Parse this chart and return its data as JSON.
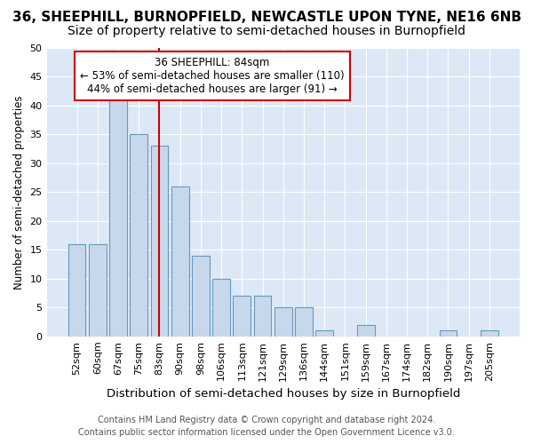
{
  "title1": "36, SHEEPHILL, BURNOPFIELD, NEWCASTLE UPON TYNE, NE16 6NB",
  "title2": "Size of property relative to semi-detached houses in Burnopfield",
  "xlabel": "Distribution of semi-detached houses by size in Burnopfield",
  "ylabel": "Number of semi-detached properties",
  "footer1": "Contains HM Land Registry data © Crown copyright and database right 2024.",
  "footer2": "Contains public sector information licensed under the Open Government Licence v3.0.",
  "categories": [
    "52sqm",
    "60sqm",
    "67sqm",
    "75sqm",
    "83sqm",
    "90sqm",
    "98sqm",
    "106sqm",
    "113sqm",
    "121sqm",
    "129sqm",
    "136sqm",
    "144sqm",
    "151sqm",
    "159sqm",
    "167sqm",
    "174sqm",
    "182sqm",
    "190sqm",
    "197sqm",
    "205sqm"
  ],
  "values": [
    16,
    16,
    41,
    35,
    33,
    26,
    14,
    10,
    7,
    7,
    5,
    5,
    1,
    0,
    2,
    0,
    0,
    0,
    1,
    0,
    1
  ],
  "bar_color": "#c8d8ec",
  "bar_edge_color": "#6699bb",
  "highlight_line_color": "#cc0000",
  "highlight_bar_index": 4,
  "annotation_title": "36 SHEEPHILL: 84sqm",
  "annotation_line1": "← 53% of semi-detached houses are smaller (110)",
  "annotation_line2": "44% of semi-detached houses are larger (91) →",
  "annotation_box_facecolor": "#ffffff",
  "annotation_box_edgecolor": "#cc0000",
  "ylim": [
    0,
    50
  ],
  "yticks": [
    0,
    5,
    10,
    15,
    20,
    25,
    30,
    35,
    40,
    45,
    50
  ],
  "plot_bg_color": "#dce8f5",
  "fig_bg_color": "#ffffff",
  "grid_color": "#ffffff",
  "title1_fontsize": 11,
  "title2_fontsize": 10,
  "xlabel_fontsize": 9.5,
  "ylabel_fontsize": 8.5,
  "tick_fontsize": 8,
  "footer_fontsize": 7,
  "annot_fontsize": 8.5
}
